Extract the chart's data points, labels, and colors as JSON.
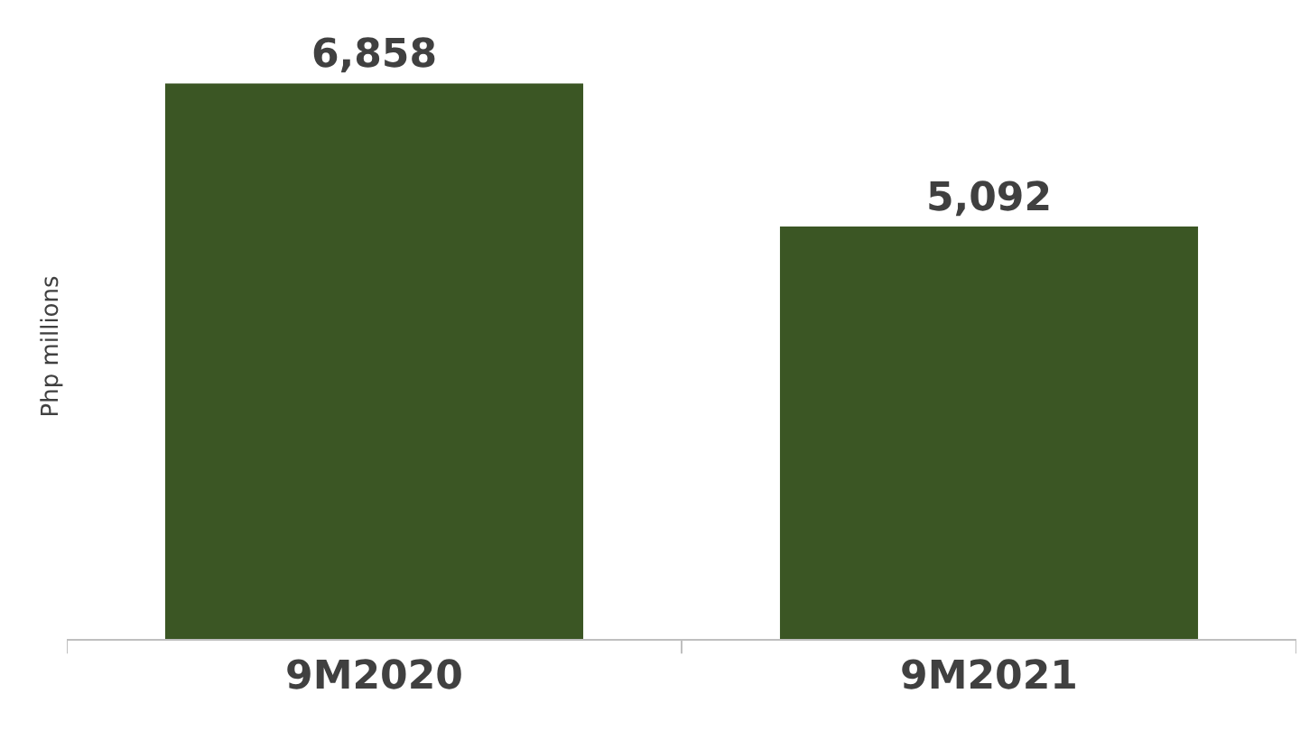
{
  "chart_data": {
    "type": "bar",
    "ylabel": "Php millions",
    "categories": [
      "9M2020",
      "9M2021"
    ],
    "values": [
      6858,
      5092
    ],
    "value_labels": [
      "6,858",
      "5,092"
    ],
    "color": "#3b5624"
  }
}
